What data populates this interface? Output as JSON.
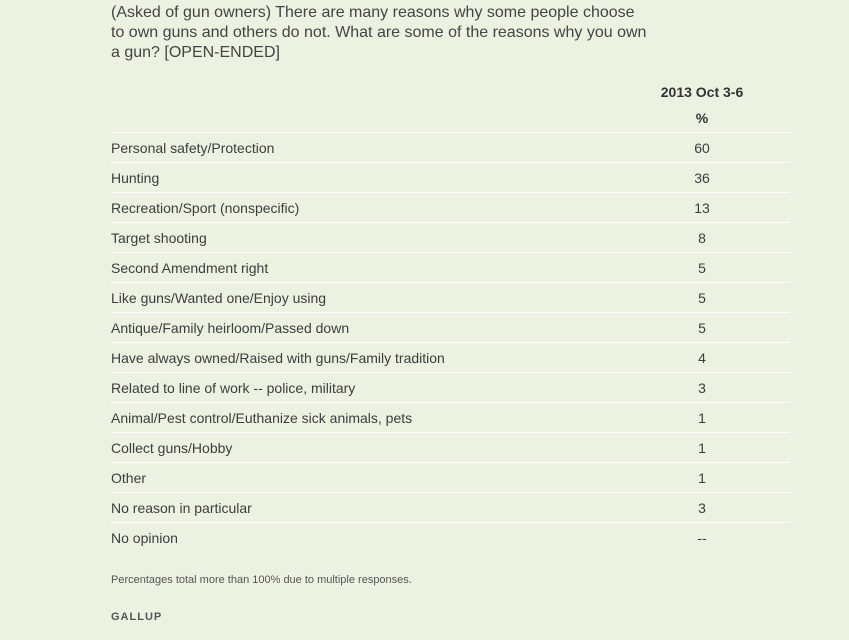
{
  "question": "(Asked of gun owners) There are many reasons why some people choose to own guns and others do not. What are some of the reasons why you own a gun? [OPEN-ENDED]",
  "column_header": "2013 Oct 3-6",
  "unit": "%",
  "footnote": "Percentages total more than 100% due to multiple responses.",
  "source": "GALLUP",
  "chart_data": {
    "type": "table",
    "columns": [
      "2013 Oct 3-6"
    ],
    "unit": "%",
    "rows": [
      {
        "label": "Personal safety/Protection",
        "value": "60"
      },
      {
        "label": "Hunting",
        "value": "36"
      },
      {
        "label": "Recreation/Sport (nonspecific)",
        "value": "13"
      },
      {
        "label": "Target shooting",
        "value": "8"
      },
      {
        "label": "Second Amendment right",
        "value": "5"
      },
      {
        "label": "Like guns/Wanted one/Enjoy using",
        "value": "5"
      },
      {
        "label": "Antique/Family heirloom/Passed down",
        "value": "5"
      },
      {
        "label": "Have always owned/Raised with guns/Family tradition",
        "value": "4"
      },
      {
        "label": "Related to line of work -- police, military",
        "value": "3"
      },
      {
        "label": "Animal/Pest control/Euthanize sick animals, pets",
        "value": "1"
      },
      {
        "label": "Collect guns/Hobby",
        "value": "1"
      },
      {
        "label": "Other",
        "value": "1"
      },
      {
        "label": "No reason in particular",
        "value": "3"
      },
      {
        "label": "No opinion",
        "value": "--"
      }
    ]
  }
}
